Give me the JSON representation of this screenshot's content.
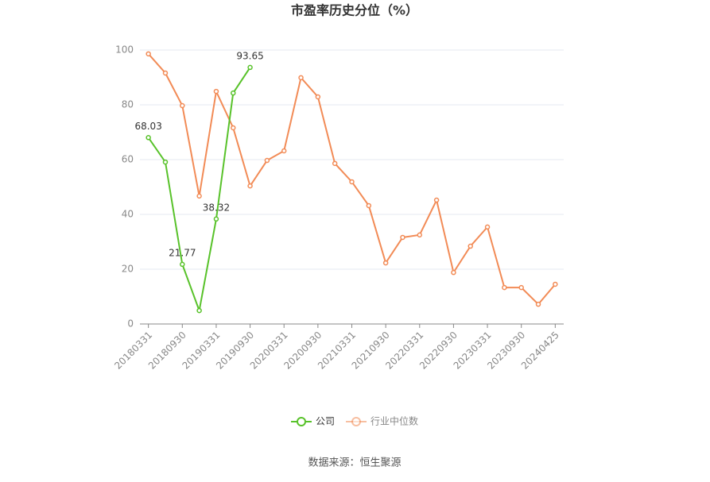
{
  "chart_data": {
    "type": "line",
    "title": "市盈率历史分位（%）",
    "categories": [
      "20180331",
      null,
      "20180930",
      null,
      "20190331",
      null,
      "20190930",
      null,
      "20200331",
      null,
      "20200930",
      null,
      "20210331",
      null,
      "20210930",
      null,
      "20220331",
      null,
      "20220930",
      null,
      "20230331",
      null,
      "20230930",
      null,
      "20240425"
    ],
    "series": [
      {
        "name": "公司",
        "color": "#58c22a",
        "values": [
          68.03,
          59.1,
          21.77,
          4.9,
          38.32,
          84.3,
          93.65,
          null,
          null,
          null,
          null,
          null,
          null,
          null,
          null,
          null,
          null,
          null,
          null,
          null,
          null,
          null,
          null,
          null,
          null
        ],
        "value_labels": [
          "68.03",
          null,
          "21.77",
          null,
          "38.32",
          null,
          "93.65",
          null,
          null,
          null,
          null,
          null,
          null,
          null,
          null,
          null,
          null,
          null,
          null,
          null,
          null,
          null,
          null,
          null,
          null
        ]
      },
      {
        "name": "行业中位数",
        "color": "#f28b56",
        "values": [
          98.6,
          91.6,
          79.7,
          46.7,
          84.9,
          71.6,
          50.4,
          59.7,
          63.2,
          89.9,
          82.9,
          58.6,
          51.9,
          43.2,
          22.3,
          31.6,
          32.5,
          45.2,
          18.8,
          28.4,
          35.4,
          13.3,
          13.3,
          7.2,
          14.5
        ]
      }
    ],
    "ylim": [
      0,
      100
    ],
    "yticks": [
      0,
      20,
      40,
      60,
      80,
      100
    ],
    "grid": true,
    "source": "数据来源：恒生聚源"
  }
}
